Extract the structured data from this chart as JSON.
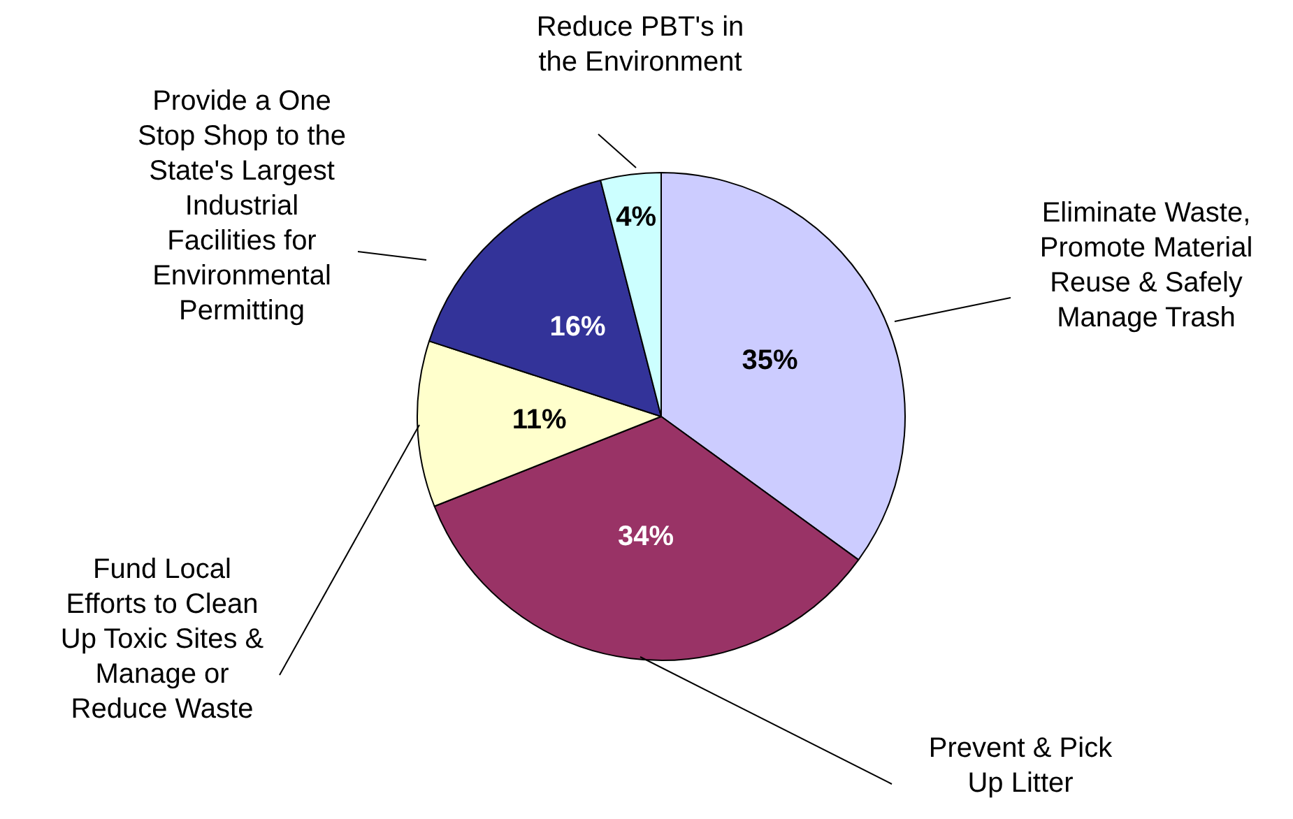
{
  "chart_data": {
    "type": "pie",
    "categories": [
      "Eliminate Waste, Promote Material Reuse & Safely Manage Trash",
      "Prevent & Pick Up Litter",
      "Fund Local Efforts to Clean Up Toxic Sites & Manage or Reduce Waste",
      "Provide a One Stop Shop to the State's Largest Industrial Facilities for Environmental Permitting",
      "Reduce PBT's in the Environment"
    ],
    "values": [
      35,
      34,
      11,
      16,
      4
    ],
    "colors": [
      "#ccccff",
      "#993366",
      "#ffffcc",
      "#333399",
      "#ccffff"
    ],
    "value_labels": [
      "35%",
      "34%",
      "11%",
      "16%",
      "4%"
    ],
    "legend": false
  }
}
